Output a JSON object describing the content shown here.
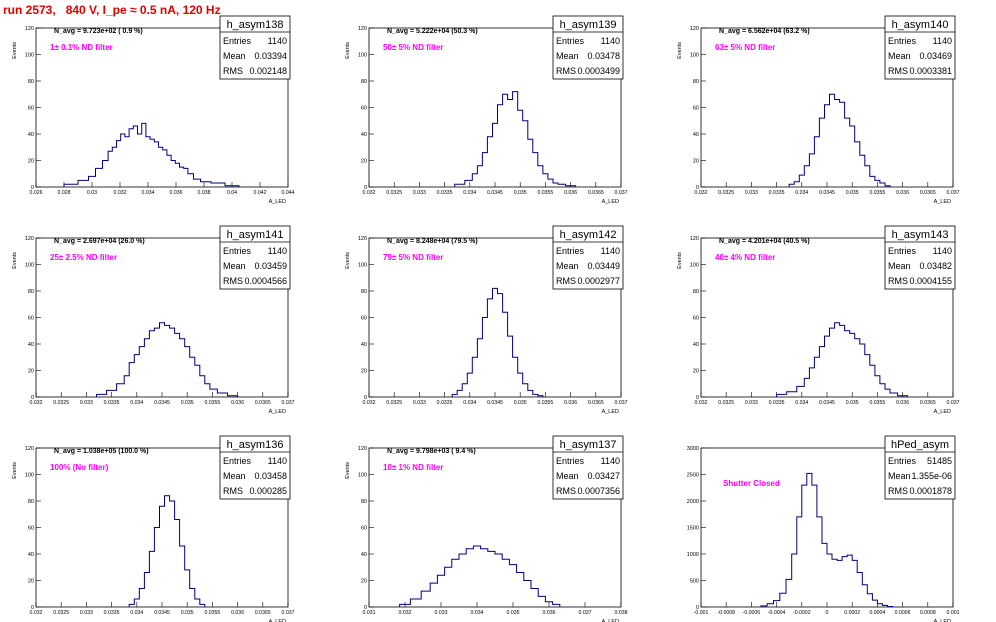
{
  "page_title": "run 2573,   840 V, I_pe ≈ 0.5 nA, 120 Hz",
  "colors": {
    "hist": "#00007f",
    "note": "#ff00ff",
    "frame": "#000000",
    "grid": "#c0c0c0",
    "title": "#e00000"
  },
  "chart_data": [
    {
      "type": "bar",
      "name": "h_asym138",
      "nav": "N_avg = 9.723e+02 ( 0.9 %)",
      "note": "1± 0.1% ND filter",
      "entries": "1140",
      "mean": "0.03394",
      "rms": "0.002148",
      "ylabel": "Events",
      "xlabel": "A_LED",
      "xlim": [
        0.026,
        0.044
      ],
      "ylim": [
        0,
        120
      ],
      "yticks": [
        0,
        20,
        40,
        60,
        80,
        100,
        120
      ],
      "xticks": [
        0.026,
        0.028,
        0.03,
        0.032,
        0.034,
        0.036,
        0.038,
        0.04,
        0.042,
        0.044
      ],
      "xtick_labels": [
        "0.026",
        "0.028",
        "0.03",
        "0.032",
        "0.034",
        "0.036",
        "0.038",
        "0.04",
        "0.042",
        "0.044"
      ],
      "bins_x": [
        0.0285,
        0.0295,
        0.03,
        0.0305,
        0.031,
        0.0313,
        0.0316,
        0.0319,
        0.0322,
        0.0325,
        0.0328,
        0.0331,
        0.0334,
        0.0337,
        0.034,
        0.0343,
        0.0346,
        0.0349,
        0.0352,
        0.0355,
        0.0358,
        0.0361,
        0.0364,
        0.0367,
        0.037,
        0.0375,
        0.038,
        0.039,
        0.04
      ],
      "bins_y": [
        2,
        5,
        8,
        14,
        20,
        27,
        30,
        35,
        40,
        38,
        44,
        46,
        40,
        48,
        38,
        36,
        34,
        30,
        28,
        24,
        20,
        18,
        15,
        14,
        10,
        6,
        4,
        3,
        1
      ]
    },
    {
      "type": "bar",
      "name": "h_asym139",
      "nav": "N_avg = 5.222e+04 (50.3 %)",
      "note": "50± 5% ND filter",
      "entries": "1140",
      "mean": "0.03478",
      "rms": "0.0003499",
      "ylabel": "Events",
      "xlabel": "A_LED",
      "xlim": [
        0.032,
        0.037
      ],
      "ylim": [
        0,
        120
      ],
      "yticks": [
        0,
        20,
        40,
        60,
        80,
        100,
        120
      ],
      "xticks": [
        0.032,
        0.0325,
        0.033,
        0.0335,
        0.034,
        0.0345,
        0.035,
        0.0355,
        0.036,
        0.0365,
        0.037
      ],
      "xtick_labels": [
        "0.032",
        "0.0325",
        "0.033",
        "0.0335",
        "0.034",
        "0.0345",
        "0.035",
        "0.0355",
        "0.036",
        "0.0365",
        "0.037"
      ],
      "bins_x": [
        0.0338,
        0.034,
        0.0341,
        0.0342,
        0.0343,
        0.0344,
        0.0345,
        0.0346,
        0.0347,
        0.0348,
        0.0349,
        0.035,
        0.0351,
        0.0352,
        0.0353,
        0.0354,
        0.0355,
        0.0356,
        0.0357,
        0.0358,
        0.036
      ],
      "bins_y": [
        2,
        5,
        10,
        16,
        26,
        38,
        48,
        62,
        70,
        66,
        72,
        58,
        50,
        36,
        26,
        16,
        10,
        6,
        3,
        2,
        1
      ]
    },
    {
      "type": "bar",
      "name": "h_asym140",
      "nav": "N_avg = 6.562e+04 (63.2 %)",
      "note": "63± 5% ND filter",
      "entries": "1140",
      "mean": "0.03469",
      "rms": "0.0003381",
      "ylabel": "Events",
      "xlabel": "A_LED",
      "xlim": [
        0.032,
        0.037
      ],
      "ylim": [
        0,
        120
      ],
      "yticks": [
        0,
        20,
        40,
        60,
        80,
        100,
        120
      ],
      "xticks": [
        0.032,
        0.0325,
        0.033,
        0.0335,
        0.034,
        0.0345,
        0.035,
        0.0355,
        0.036,
        0.0365,
        0.037
      ],
      "xtick_labels": [
        "0.032",
        "0.0325",
        "0.033",
        "0.0335",
        "0.034",
        "0.0345",
        "0.035",
        "0.0355",
        "0.036",
        "0.0365",
        "0.037"
      ],
      "bins_x": [
        0.0338,
        0.0339,
        0.034,
        0.0341,
        0.0342,
        0.0343,
        0.0344,
        0.0345,
        0.0346,
        0.0347,
        0.0348,
        0.0349,
        0.035,
        0.0351,
        0.0352,
        0.0353,
        0.0354,
        0.0355,
        0.0356,
        0.0357
      ],
      "bins_y": [
        2,
        4,
        9,
        16,
        25,
        38,
        52,
        62,
        70,
        66,
        64,
        52,
        46,
        34,
        24,
        16,
        8,
        5,
        3,
        1
      ]
    },
    {
      "type": "bar",
      "name": "h_asym141",
      "nav": "N_avg = 2.697e+04 (26.0 %)",
      "note": "25± 2.5% ND filter",
      "entries": "1140",
      "mean": "0.03459",
      "rms": "0.0004566",
      "ylabel": "Events",
      "xlabel": "A_LED",
      "xlim": [
        0.032,
        0.037
      ],
      "ylim": [
        0,
        120
      ],
      "yticks": [
        0,
        20,
        40,
        60,
        80,
        100,
        120
      ],
      "xticks": [
        0.032,
        0.0325,
        0.033,
        0.0335,
        0.034,
        0.0345,
        0.035,
        0.0355,
        0.036,
        0.0365,
        0.037
      ],
      "xtick_labels": [
        "0.032",
        "0.0325",
        "0.033",
        "0.0335",
        "0.034",
        "0.0345",
        "0.035",
        "0.0355",
        "0.036",
        "0.0365",
        "0.037"
      ],
      "bins_x": [
        0.0333,
        0.0335,
        0.0337,
        0.0338,
        0.0339,
        0.034,
        0.0341,
        0.0342,
        0.0343,
        0.0344,
        0.0345,
        0.0346,
        0.0347,
        0.0348,
        0.0349,
        0.035,
        0.0351,
        0.0352,
        0.0353,
        0.0354,
        0.0355,
        0.0357,
        0.0359
      ],
      "bins_y": [
        2,
        5,
        10,
        16,
        26,
        32,
        38,
        44,
        50,
        52,
        56,
        54,
        52,
        48,
        44,
        38,
        30,
        24,
        16,
        10,
        6,
        3,
        1
      ]
    },
    {
      "type": "bar",
      "name": "h_asym142",
      "nav": "N_avg = 8.248e+04 (79.5 %)",
      "note": "79± 5% ND filter",
      "entries": "1140",
      "mean": "0.03449",
      "rms": "0.0002977",
      "ylabel": "Events",
      "xlabel": "A_LED",
      "xlim": [
        0.032,
        0.037
      ],
      "ylim": [
        0,
        120
      ],
      "yticks": [
        0,
        20,
        40,
        60,
        80,
        100,
        120
      ],
      "xticks": [
        0.032,
        0.0325,
        0.033,
        0.0335,
        0.034,
        0.0345,
        0.035,
        0.0355,
        0.036,
        0.0365,
        0.037
      ],
      "xtick_labels": [
        "0.032",
        "0.0325",
        "0.033",
        "0.0335",
        "0.034",
        "0.0345",
        "0.035",
        "0.0355",
        "0.036",
        "0.0365",
        "0.037"
      ],
      "bins_x": [
        0.0337,
        0.0338,
        0.0339,
        0.034,
        0.0341,
        0.0342,
        0.0343,
        0.0344,
        0.0345,
        0.0346,
        0.0347,
        0.0348,
        0.0349,
        0.035,
        0.0351,
        0.0352,
        0.0353,
        0.0354
      ],
      "bins_y": [
        2,
        5,
        10,
        18,
        30,
        44,
        60,
        74,
        82,
        78,
        64,
        46,
        30,
        18,
        10,
        5,
        2,
        1
      ]
    },
    {
      "type": "bar",
      "name": "h_asym143",
      "nav": "N_avg = 4.201e+04 (40.5 %)",
      "note": "40± 4% ND filter",
      "entries": "1140",
      "mean": "0.03482",
      "rms": "0.0004155",
      "ylabel": "Events",
      "xlabel": "A_LED",
      "xlim": [
        0.032,
        0.037
      ],
      "ylim": [
        0,
        120
      ],
      "yticks": [
        0,
        20,
        40,
        60,
        80,
        100,
        120
      ],
      "xticks": [
        0.032,
        0.0325,
        0.033,
        0.0335,
        0.034,
        0.0345,
        0.035,
        0.0355,
        0.036,
        0.0365,
        0.037
      ],
      "xtick_labels": [
        "0.032",
        "0.0325",
        "0.033",
        "0.0335",
        "0.034",
        "0.0345",
        "0.035",
        "0.0355",
        "0.036",
        "0.0365",
        "0.037"
      ],
      "bins_x": [
        0.0336,
        0.0338,
        0.034,
        0.0341,
        0.0342,
        0.0343,
        0.0344,
        0.0345,
        0.0346,
        0.0347,
        0.0348,
        0.0349,
        0.035,
        0.0351,
        0.0352,
        0.0353,
        0.0354,
        0.0355,
        0.0356,
        0.0357,
        0.0358,
        0.036
      ],
      "bins_y": [
        2,
        4,
        8,
        14,
        22,
        30,
        38,
        46,
        52,
        56,
        54,
        50,
        48,
        44,
        40,
        32,
        24,
        16,
        10,
        6,
        3,
        1
      ]
    },
    {
      "type": "bar",
      "name": "h_asym136",
      "nav": "N_avg = 1.038e+05 (100.0 %)",
      "note": "100% (No filter)",
      "entries": "1140",
      "mean": "0.03458",
      "rms": "0.000285",
      "ylabel": "Events",
      "xlabel": "A_LED",
      "xlim": [
        0.032,
        0.037
      ],
      "ylim": [
        0,
        120
      ],
      "yticks": [
        0,
        20,
        40,
        60,
        80,
        100,
        120
      ],
      "xticks": [
        0.032,
        0.0325,
        0.033,
        0.0335,
        0.034,
        0.0345,
        0.035,
        0.0355,
        0.036,
        0.0365,
        0.037
      ],
      "xtick_labels": [
        "0.032",
        "0.0325",
        "0.033",
        "0.0335",
        "0.034",
        "0.0345",
        "0.035",
        "0.0355",
        "0.036",
        "0.0365",
        "0.037"
      ],
      "bins_x": [
        0.0339,
        0.034,
        0.0341,
        0.0342,
        0.0343,
        0.0344,
        0.0345,
        0.0346,
        0.0347,
        0.0348,
        0.0349,
        0.035,
        0.0351,
        0.0352,
        0.0353
      ],
      "bins_y": [
        2,
        6,
        14,
        26,
        42,
        60,
        76,
        84,
        80,
        66,
        46,
        28,
        14,
        6,
        2
      ]
    },
    {
      "type": "bar",
      "name": "h_asym137",
      "nav": "N_avg = 9.798e+03 ( 9.4 %)",
      "note": "10± 1% ND filter",
      "entries": "1140",
      "mean": "0.03427",
      "rms": "0.0007356",
      "ylabel": "Events",
      "xlabel": "A_LED",
      "xlim": [
        0.031,
        0.038
      ],
      "ylim": [
        0,
        120
      ],
      "yticks": [
        0,
        20,
        40,
        60,
        80,
        100,
        120
      ],
      "xticks": [
        0.031,
        0.032,
        0.033,
        0.034,
        0.035,
        0.036,
        0.037,
        0.038
      ],
      "xtick_labels": [
        "0.031",
        "0.032",
        "0.033",
        "0.034",
        "0.035",
        "0.036",
        "0.037",
        "0.038"
      ],
      "bins_x": [
        0.032,
        0.0323,
        0.0326,
        0.0328,
        0.033,
        0.0332,
        0.0334,
        0.0336,
        0.0338,
        0.034,
        0.0342,
        0.0344,
        0.0346,
        0.0348,
        0.035,
        0.0352,
        0.0354,
        0.0356,
        0.0358,
        0.036,
        0.0362
      ],
      "bins_y": [
        2,
        6,
        12,
        18,
        24,
        30,
        36,
        40,
        44,
        46,
        44,
        42,
        40,
        36,
        32,
        26,
        20,
        14,
        8,
        4,
        2
      ]
    },
    {
      "type": "bar",
      "name": "hPed_asym",
      "nav": "",
      "note": "Shutter Closed",
      "entries": "51485",
      "mean": "1.355e-06",
      "rms": "0.0001878",
      "ylabel": "",
      "xlabel": "A_LED",
      "xlim": [
        -0.001,
        0.001
      ],
      "ylim": [
        0,
        3000
      ],
      "yticks": [
        0,
        500,
        1000,
        1500,
        2000,
        2500,
        3000
      ],
      "ytick_labels": [
        "0",
        "500",
        "1000",
        "1500",
        "2000",
        "2500",
        "3000"
      ],
      "xticks": [
        -0.001,
        -0.0008,
        -0.0006,
        -0.0004,
        -0.0002,
        0,
        0.0002,
        0.0004,
        0.0006,
        0.0008,
        0.001
      ],
      "xtick_labels": [
        "-0.001",
        "-0.0008",
        "-0.0006",
        "-0.0004",
        "-0.0002",
        "0",
        "0.0002",
        "0.0004",
        "0.0006",
        "0.0008",
        "0.001"
      ],
      "bins_x": [
        -0.0005,
        -0.00045,
        -0.0004,
        -0.00035,
        -0.0003,
        -0.00026,
        -0.00022,
        -0.00018,
        -0.00014,
        -0.0001,
        -6e-05,
        -2e-05,
        2e-05,
        6e-05,
        0.0001,
        0.00014,
        0.00018,
        0.00022,
        0.00026,
        0.0003,
        0.00034,
        0.00038,
        0.00042,
        0.00046,
        0.0005
      ],
      "bins_y": [
        20,
        60,
        120,
        260,
        520,
        1000,
        1700,
        2300,
        2520,
        2300,
        1700,
        1200,
        1000,
        900,
        880,
        950,
        980,
        880,
        650,
        420,
        250,
        130,
        60,
        30,
        10
      ]
    }
  ]
}
